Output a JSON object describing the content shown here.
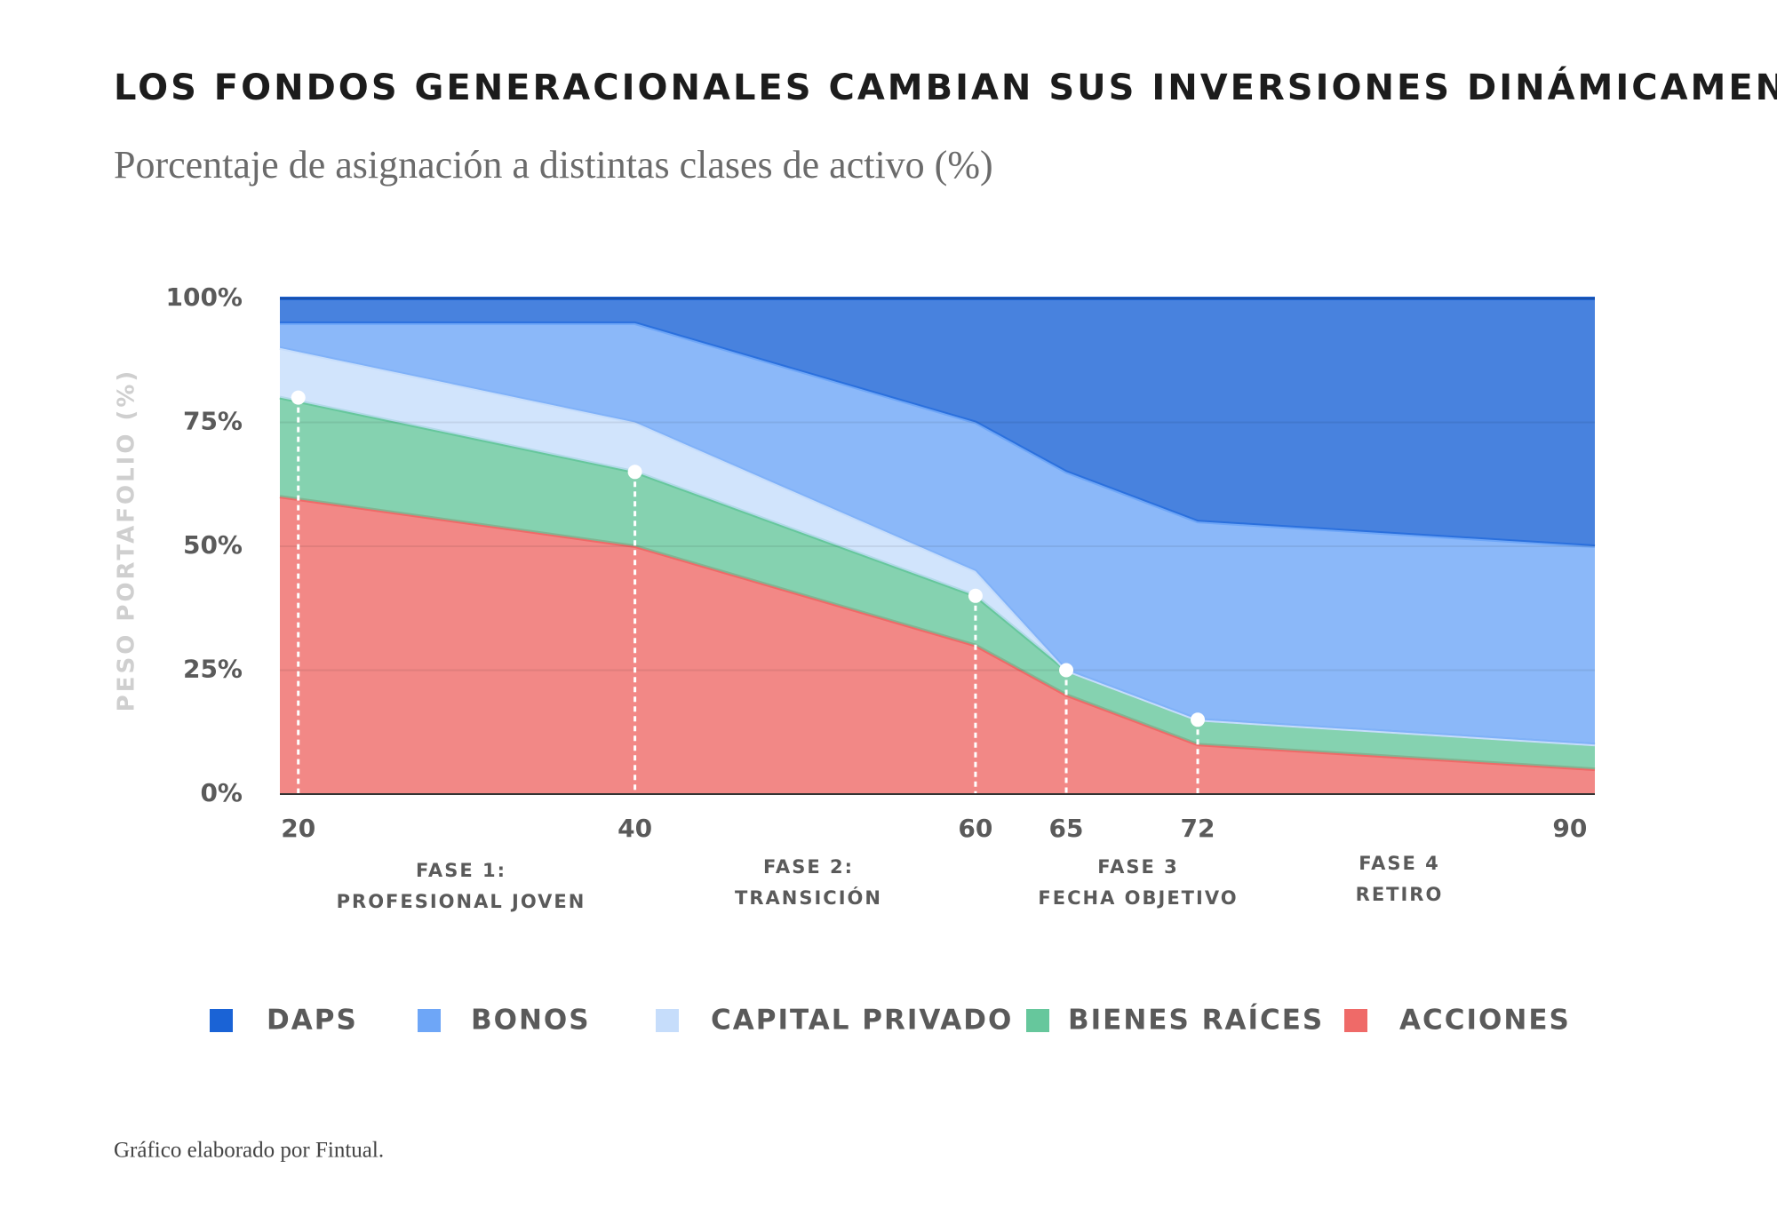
{
  "chart_data": {
    "type": "stacked_area",
    "title": "LOS FONDOS GENERACIONALES CAMBIAN SUS INVERSIONES DINÁMICAMENTE",
    "subtitle": "Porcentaje de asignación a distintas clases de activo  (%)",
    "y_label": "PESO PORTAFOLIO (%)",
    "categories": [
      "20",
      "40",
      "60",
      "65",
      "72",
      "90"
    ],
    "series": [
      {
        "name": "DAPS",
        "color": "#1a63d6",
        "values": [
          5,
          5,
          25,
          35,
          45,
          50
        ]
      },
      {
        "name": "BONOS",
        "color": "#6ea6f7",
        "values": [
          5,
          20,
          30,
          40,
          40,
          40
        ]
      },
      {
        "name": "CAPITAL PRIVADO",
        "color": "#c6ddfb",
        "values": [
          10,
          10,
          5,
          0,
          0,
          0
        ]
      },
      {
        "name": "BIENES RAÍCES",
        "color": "#66c79c",
        "values": [
          20,
          15,
          10,
          5,
          5,
          5
        ]
      },
      {
        "name": "ACCIONES",
        "color": "#ef6a68",
        "values": [
          60,
          50,
          30,
          20,
          10,
          5
        ]
      }
    ],
    "ylim": [
      0,
      100
    ],
    "yticks": [
      {
        "value": 0,
        "label": "0%"
      },
      {
        "value": 25,
        "label": "25%"
      },
      {
        "value": 50,
        "label": "50%"
      },
      {
        "value": 75,
        "label": "75%"
      },
      {
        "value": 100,
        "label": "100%"
      }
    ],
    "grid": true,
    "phases": [
      {
        "lines": [
          "FASE 1:",
          "PROFESIONAL JOVEN"
        ]
      },
      {
        "lines": [
          "FASE 2:",
          "TRANSICIÓN"
        ]
      },
      {
        "lines": [
          "FASE 3",
          "FECHA OBJETIVO"
        ]
      },
      {
        "lines": [
          "FASE 4",
          "RETIRO"
        ]
      }
    ],
    "footer": "Gráfico elaborado por Fintual."
  }
}
